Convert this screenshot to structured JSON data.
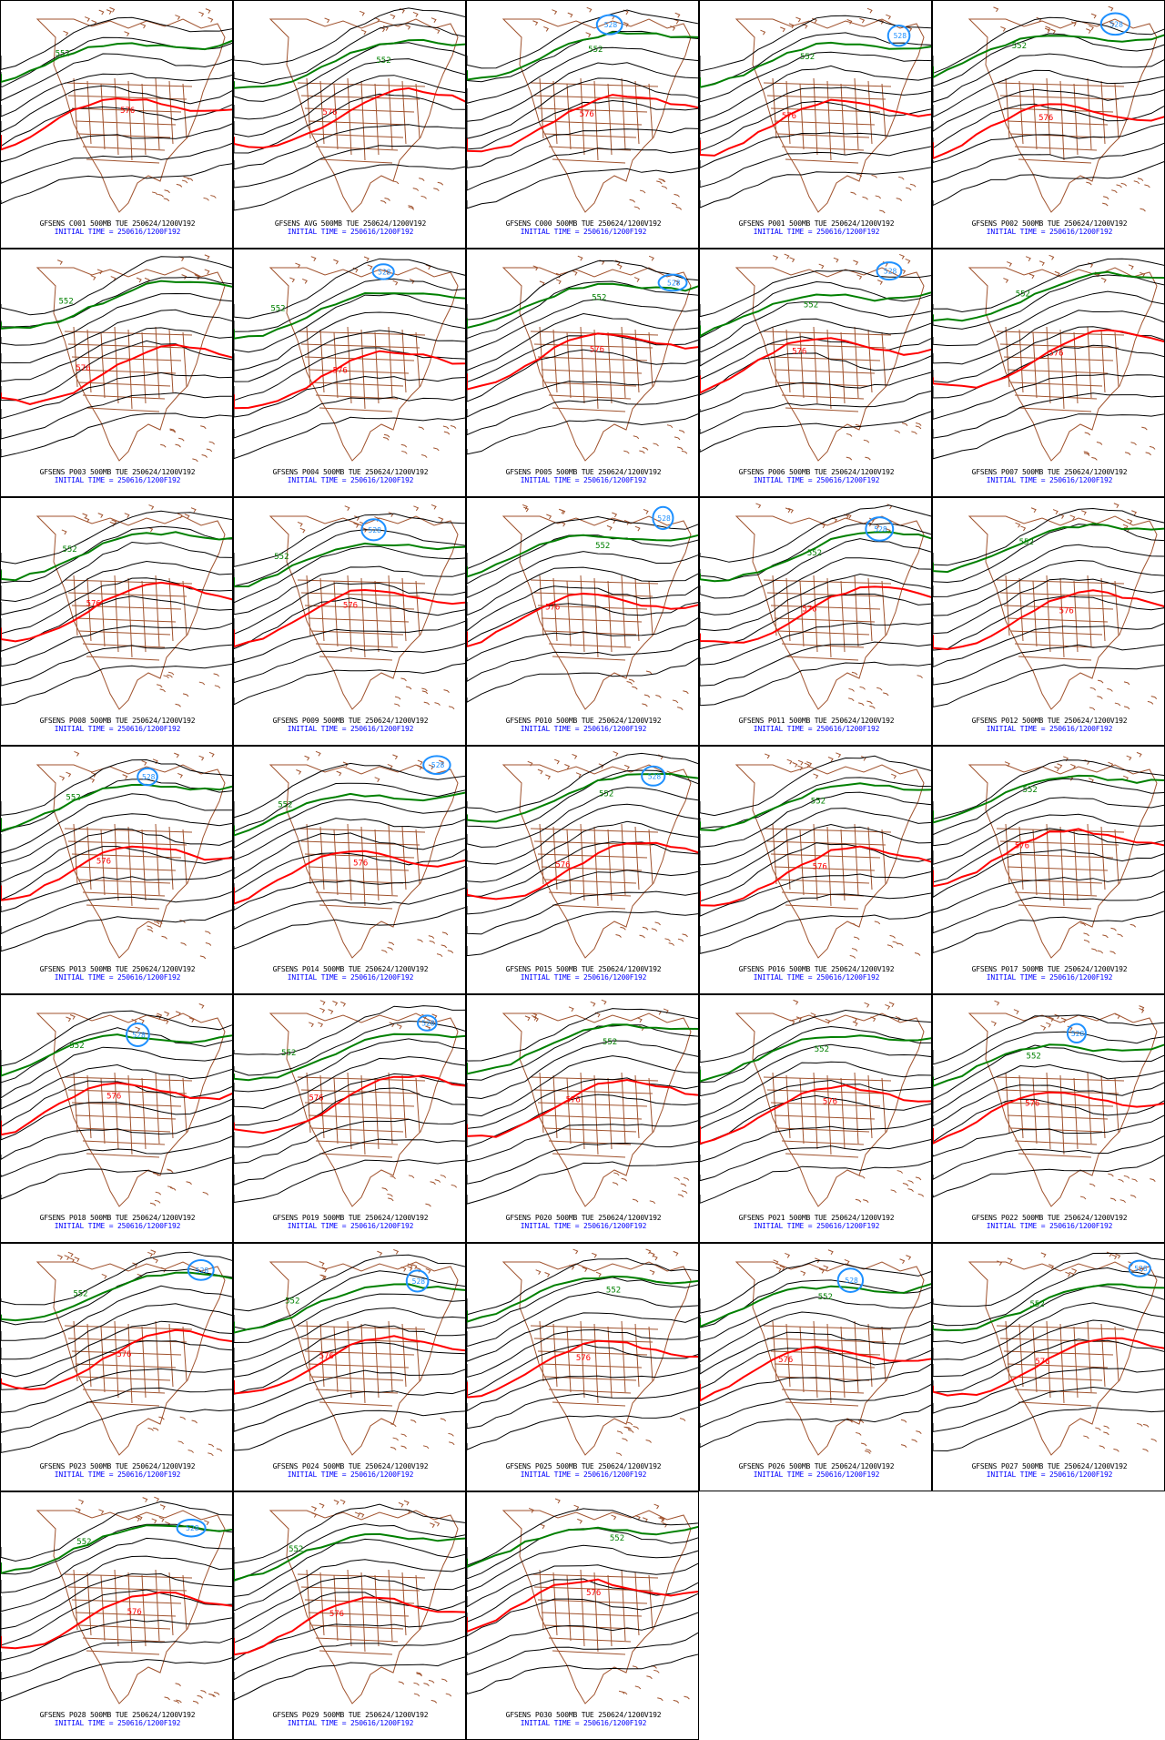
{
  "panels": [
    {
      "caption": "GFSENS C001 500MB TUE 250624/1200V192",
      "init": "INITIAL TIME = 250616/1200F192"
    },
    {
      "caption": "GFSENS AVG 500MB TUE 250624/1200V192",
      "init": "INITIAL TIME = 250616/1200F192"
    },
    {
      "caption": "GFSENS C000 500MB TUE 250624/1200V192",
      "init": "INITIAL TIME = 250616/1200F192"
    },
    {
      "caption": "GFSENS P001 500MB TUE 250624/1200V192",
      "init": "INITIAL TIME = 250616/1200F192"
    },
    {
      "caption": "GFSENS P002 500MB TUE 250624/1200V192",
      "init": "INITIAL TIME = 250616/1200F192"
    },
    {
      "caption": "GFSENS P003 500MB TUE 250624/1200V192",
      "init": "INITIAL TIME = 250616/1200F192"
    },
    {
      "caption": "GFSENS P004 500MB TUE 250624/1200V192",
      "init": "INITIAL TIME = 250616/1200F192"
    },
    {
      "caption": "GFSENS P005 500MB TUE 250624/1200V192",
      "init": "INITIAL TIME = 250616/1200F192"
    },
    {
      "caption": "GFSENS P006 500MB TUE 250624/1200V192",
      "init": "INITIAL TIME = 250616/1200F192"
    },
    {
      "caption": "GFSENS P007 500MB TUE 250624/1200V192",
      "init": "INITIAL TIME = 250616/1200F192"
    },
    {
      "caption": "GFSENS P008 500MB TUE 250624/1200V192",
      "init": "INITIAL TIME = 250616/1200F192"
    },
    {
      "caption": "GFSENS P009 500MB TUE 250624/1200V192",
      "init": "INITIAL TIME = 250616/1200F192"
    },
    {
      "caption": "GFSENS P010 500MB TUE 250624/1200V192",
      "init": "INITIAL TIME = 250616/1200F192"
    },
    {
      "caption": "GFSENS P011 500MB TUE 250624/1200V192",
      "init": "INITIAL TIME = 250616/1200F192"
    },
    {
      "caption": "GFSENS P012 500MB TUE 250624/1200V192",
      "init": "INITIAL TIME = 250616/1200F192"
    },
    {
      "caption": "GFSENS P013 500MB TUE 250624/1200V192",
      "init": "INITIAL TIME = 250616/1200F192"
    },
    {
      "caption": "GFSENS P014 500MB TUE 250624/1200V192",
      "init": "INITIAL TIME = 250616/1200F192"
    },
    {
      "caption": "GFSENS P015 500MB TUE 250624/1200V192",
      "init": "INITIAL TIME = 250616/1200F192"
    },
    {
      "caption": "GFSENS P016 500MB TUE 250624/1200V192",
      "init": "INITIAL TIME = 250616/1200F192"
    },
    {
      "caption": "GFSENS P017 500MB TUE 250624/1200V192",
      "init": "INITIAL TIME = 250616/1200F192"
    },
    {
      "caption": "GFSENS P018 500MB TUE 250624/1200V192",
      "init": "INITIAL TIME = 250616/1200F192"
    },
    {
      "caption": "GFSENS P019 500MB TUE 250624/1200V192",
      "init": "INITIAL TIME = 250616/1200F192"
    },
    {
      "caption": "GFSENS P020 500MB TUE 250624/1200V192",
      "init": "INITIAL TIME = 250616/1200F192"
    },
    {
      "caption": "GFSENS P021 500MB TUE 250624/1200V192",
      "init": "INITIAL TIME = 250616/1200F192"
    },
    {
      "caption": "GFSENS P022 500MB TUE 250624/1200V192",
      "init": "INITIAL TIME = 250616/1200F192"
    },
    {
      "caption": "GFSENS P023 500MB TUE 250624/1200V192",
      "init": "INITIAL TIME = 250616/1200F192"
    },
    {
      "caption": "GFSENS P024 500MB TUE 250624/1200V192",
      "init": "INITIAL TIME = 250616/1200F192"
    },
    {
      "caption": "GFSENS P025 500MB TUE 250624/1200V192",
      "init": "INITIAL TIME = 250616/1200F192"
    },
    {
      "caption": "GFSENS P026 500MB TUE 250624/1200V192",
      "init": "INITIAL TIME = 250616/1200F192"
    },
    {
      "caption": "GFSENS P027 500MB TUE 250624/1200V192",
      "init": "INITIAL TIME = 250616/1200F192"
    },
    {
      "caption": "GFSENS P028 500MB TUE 250624/1200V192",
      "init": "INITIAL TIME = 250616/1200F192"
    },
    {
      "caption": "GFSENS P029 500MB TUE 250624/1200V192",
      "init": "INITIAL TIME = 250616/1200F192"
    },
    {
      "caption": "GFSENS P030 500MB TUE 250624/1200V192",
      "init": "INITIAL TIME = 250616/1200F192"
    }
  ],
  "contour_labels": {
    "red": "576",
    "green": "552",
    "blue": "528"
  },
  "colors": {
    "red_contour": "#ff0000",
    "green_contour": "#008000",
    "blue_contour": "#1e90ff",
    "black_contour": "#000000",
    "map_borders": "#a0522d",
    "caption": "#000000",
    "initial_time": "#0000ff"
  }
}
